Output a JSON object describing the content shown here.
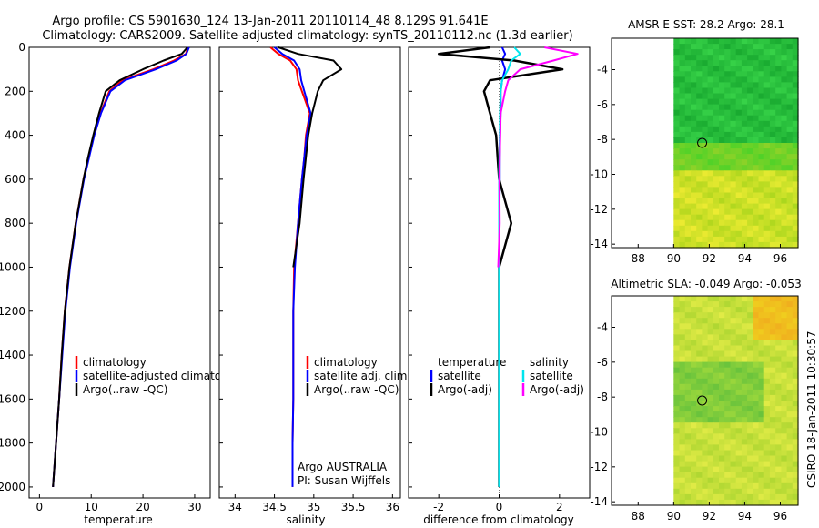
{
  "title": {
    "line1": "Argo profile: CS 5901630_124 13-Jan-2011 20110114_48 8.129S 91.641E",
    "line2": "Climatology: CARS2009. Satellite-adjusted climatology: synTS_20110112.nc (1.3d earlier)"
  },
  "credit": "CSIRO 18-Jan-2011 10:30:57",
  "colors": {
    "climatology": "#ff0000",
    "satellite": "#0000ff",
    "argo": "#000000",
    "sal_satellite": "#00e5ee",
    "sal_argo": "#ff00ff"
  },
  "depth_axis": {
    "ylim": [
      0,
      2050
    ],
    "ticks": [
      "0",
      "200",
      "400",
      "600",
      "800",
      "1000",
      "1200",
      "1400",
      "1600",
      "1800",
      "2000"
    ]
  },
  "chart_data": [
    {
      "type": "line",
      "name": "temperature",
      "xlabel": "temperature",
      "xlim": [
        -2,
        33
      ],
      "xticks": [
        "0",
        "10",
        "20",
        "30"
      ],
      "y": [
        0,
        30,
        60,
        100,
        150,
        200,
        300,
        400,
        500,
        600,
        800,
        1000,
        1200,
        1400,
        1600,
        1800,
        2000
      ],
      "series": [
        {
          "name": "climatology",
          "values": [
            28.7,
            28.3,
            26.0,
            22.0,
            16.0,
            13.5,
            11.8,
            10.5,
            9.5,
            8.5,
            7.0,
            5.8,
            4.9,
            4.3,
            3.8,
            3.2,
            2.6
          ]
        },
        {
          "name": "satellite-adjusted climatology",
          "values": [
            28.9,
            28.4,
            26.5,
            22.5,
            16.5,
            13.7,
            11.9,
            10.6,
            9.6,
            8.6,
            7.1,
            5.9,
            5.0,
            4.4,
            3.8,
            3.2,
            2.6
          ]
        },
        {
          "name": "Argo(..raw -QC)",
          "values": [
            28.6,
            27.5,
            24.0,
            20.0,
            15.5,
            12.8,
            11.5,
            10.4,
            9.4,
            8.5,
            7.0,
            5.8,
            4.9,
            4.3,
            3.8,
            3.2,
            2.6
          ]
        }
      ],
      "legend": [
        "climatology",
        "satellite-adjusted climatology",
        "Argo(..raw -QC)"
      ]
    },
    {
      "type": "line",
      "name": "salinity",
      "xlabel": "salinity",
      "xlim": [
        33.8,
        36.1
      ],
      "xticks": [
        "34",
        "34.5",
        "35",
        "35.5",
        "36"
      ],
      "y": [
        0,
        30,
        60,
        100,
        150,
        200,
        300,
        400,
        500,
        600,
        800,
        1000,
        1200,
        1400,
        1600,
        1800,
        2000
      ],
      "series": [
        {
          "name": "climatology",
          "values": [
            34.45,
            34.55,
            34.7,
            34.78,
            34.8,
            34.85,
            34.95,
            34.9,
            34.88,
            34.85,
            34.8,
            34.75,
            34.74,
            34.74,
            34.74,
            34.73,
            34.73
          ]
        },
        {
          "name": "satellite adj. clim.",
          "values": [
            34.5,
            34.6,
            34.75,
            34.82,
            34.84,
            34.88,
            34.96,
            34.91,
            34.88,
            34.85,
            34.8,
            34.76,
            34.74,
            34.74,
            34.74,
            34.73,
            34.73
          ]
        },
        {
          "name": "Argo(..raw -QC)",
          "values": [
            34.55,
            34.8,
            35.25,
            35.35,
            35.12,
            35.05,
            34.98,
            34.93,
            34.9,
            34.87,
            34.82,
            34.74,
            null,
            null,
            null,
            null,
            null
          ]
        }
      ],
      "legend": [
        "climatology",
        "satellite adj. clim.",
        "Argo(..raw -QC)"
      ],
      "annotation": [
        "Argo AUSTRALIA",
        "PI: Susan Wijffels"
      ]
    },
    {
      "type": "line",
      "name": "difference from climatology",
      "xlabel": "difference from climatology",
      "xlim": [
        -3,
        3
      ],
      "xticks": [
        "-2",
        "0",
        "2"
      ],
      "y": [
        0,
        30,
        60,
        100,
        150,
        200,
        300,
        400,
        500,
        600,
        800,
        1000,
        1200,
        1400,
        1600,
        1800,
        2000
      ],
      "series": [
        {
          "name": "temperature satellite",
          "values": [
            0.1,
            0.2,
            0.1,
            0.2,
            0.1,
            0.05,
            0.05,
            0.03,
            0.02,
            0.02,
            0.01,
            0.01,
            0.0,
            0.0,
            0.0,
            0.0,
            0.0
          ]
        },
        {
          "name": "temperature Argo(-adj)",
          "values": [
            -0.3,
            -2.0,
            0.5,
            2.1,
            -0.3,
            -0.5,
            -0.3,
            -0.1,
            -0.05,
            0.0,
            0.4,
            0.0,
            0.0,
            0.0,
            0.0,
            0.0,
            0.0
          ]
        },
        {
          "name": "salinity satellite",
          "values": [
            0.5,
            0.7,
            0.4,
            0.3,
            0.1,
            0.05,
            0.03,
            0.02,
            0.01,
            0.0,
            0.0,
            0.0,
            0.0,
            0.0,
            0.0,
            0.0,
            0.0
          ]
        },
        {
          "name": "salinity Argo(-adj)",
          "values": [
            1.5,
            2.6,
            1.8,
            0.7,
            0.3,
            0.2,
            0.05,
            0.04,
            0.02,
            0.01,
            0.02,
            -0.03,
            null,
            null,
            null,
            null,
            null
          ]
        }
      ],
      "legend_headers": [
        "temperature",
        "salinity"
      ],
      "legend": [
        "satellite",
        "Argo(-adj)",
        "satellite",
        "Argo(-adj)"
      ]
    },
    {
      "type": "heatmap",
      "name": "sst_map",
      "title": "AMSR-E SST: 28.2  Argo: 28.1",
      "xlim": [
        86.5,
        97
      ],
      "ylim": [
        -14.2,
        -2.2
      ],
      "xticks": [
        "88",
        "90",
        "92",
        "94",
        "96"
      ],
      "yticks": [
        "-4",
        "-6",
        "-8",
        "-10",
        "-12",
        "-14"
      ],
      "marker": {
        "lon": 91.6,
        "lat": -8.2
      }
    },
    {
      "type": "heatmap",
      "name": "sla_map",
      "title": "Altimetric SLA: -0.049  Argo: -0.053",
      "xlim": [
        86.5,
        97
      ],
      "ylim": [
        -14.2,
        -2.2
      ],
      "xticks": [
        "88",
        "90",
        "92",
        "94",
        "96"
      ],
      "yticks": [
        "-4",
        "-6",
        "-8",
        "-10",
        "-12",
        "-14"
      ],
      "marker": {
        "lon": 91.6,
        "lat": -8.2
      }
    }
  ]
}
